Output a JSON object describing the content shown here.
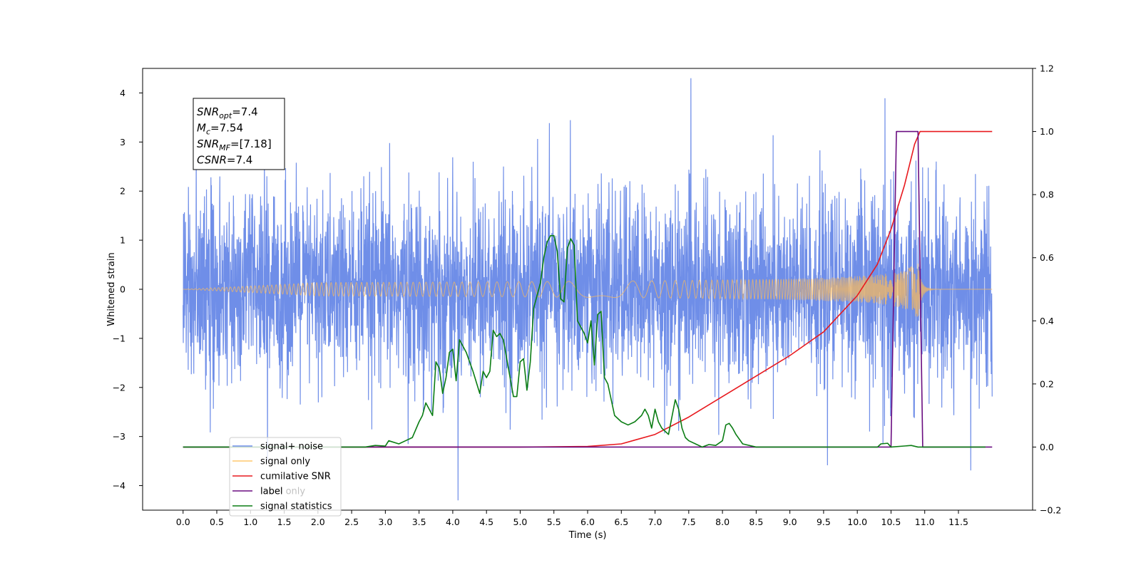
{
  "chart_data": {
    "type": "line",
    "xlabel": "Time (s)",
    "ylabel": "Whitened strain",
    "xlim": [
      -0.6,
      12.6
    ],
    "ylim": [
      -4.5,
      4.5
    ],
    "y2lim": [
      -0.2,
      1.2
    ],
    "x_ticks": [
      "0.0",
      "0.5",
      "1.0",
      "1.5",
      "2.0",
      "2.5",
      "3.0",
      "3.5",
      "4.0",
      "4.5",
      "5.0",
      "5.5",
      "6.0",
      "6.5",
      "7.0",
      "7.5",
      "8.0",
      "8.5",
      "9.0",
      "9.5",
      "10.0",
      "10.5",
      "11.0",
      "11.5"
    ],
    "y_ticks": [
      "4",
      "3",
      "2",
      "1",
      "0",
      "−1",
      "−2",
      "−3",
      "−4"
    ],
    "y2_ticks": [
      "1.2",
      "1.0",
      "0.8",
      "0.6",
      "0.4",
      "0.2",
      "0.0",
      "−0.2"
    ],
    "legend_position": "lower-left",
    "info_box": [
      {
        "main": "SNR",
        "sub": "opt",
        "value": "=7.4"
      },
      {
        "main": "M",
        "sub": "c",
        "value": "=7.54"
      },
      {
        "main": "SNR",
        "sub": "MF",
        "value": "=[7.18]"
      },
      {
        "main": "CSNR",
        "sub": "",
        "value": "=7.4"
      }
    ],
    "series": [
      {
        "name": "signal+ noise",
        "color": "#6f8ee8",
        "axis": "left",
        "kind": "noise",
        "x_range": [
          0,
          12
        ],
        "band_std": 0.95
      },
      {
        "name": "signal only",
        "color": "#f5b860",
        "axis": "left",
        "kind": "chirp",
        "x_range": [
          0,
          12
        ],
        "merger_time": 10.9,
        "peak_amplitude": 0.65
      },
      {
        "name": "cumilative SNR",
        "color": "#e8191e",
        "axis": "right",
        "x": [
          0,
          5,
          6,
          6.5,
          7,
          7.5,
          8,
          8.5,
          9,
          9.5,
          10,
          10.3,
          10.5,
          10.7,
          10.85,
          10.93,
          12
        ],
        "y": [
          0,
          0,
          0.002,
          0.01,
          0.04,
          0.095,
          0.16,
          0.225,
          0.29,
          0.365,
          0.48,
          0.58,
          0.69,
          0.83,
          0.96,
          1.0,
          1.0
        ]
      },
      {
        "name": "label",
        "color": "#6a0d80",
        "axis": "right",
        "x": [
          0,
          10.5,
          10.58,
          10.9,
          10.97,
          12
        ],
        "y": [
          0,
          0,
          1.0,
          1.0,
          0,
          0
        ]
      },
      {
        "name": "signal statistics",
        "color": "#0b7d14",
        "axis": "right",
        "x": [
          0,
          2.7,
          2.85,
          3.0,
          3.05,
          3.2,
          3.3,
          3.4,
          3.5,
          3.55,
          3.6,
          3.65,
          3.7,
          3.75,
          3.8,
          3.85,
          3.9,
          3.95,
          4.0,
          4.05,
          4.1,
          4.2,
          4.3,
          4.4,
          4.45,
          4.5,
          4.55,
          4.6,
          4.65,
          4.7,
          4.75,
          4.8,
          4.85,
          4.9,
          4.95,
          5.0,
          5.05,
          5.1,
          5.15,
          5.2,
          5.25,
          5.3,
          5.35,
          5.4,
          5.45,
          5.5,
          5.55,
          5.6,
          5.65,
          5.7,
          5.75,
          5.8,
          5.85,
          5.9,
          5.95,
          6.0,
          6.05,
          6.1,
          6.15,
          6.2,
          6.25,
          6.3,
          6.4,
          6.5,
          6.6,
          6.7,
          6.75,
          6.8,
          6.85,
          6.9,
          6.95,
          7.0,
          7.05,
          7.1,
          7.15,
          7.2,
          7.3,
          7.35,
          7.4,
          7.45,
          7.5,
          7.6,
          7.7,
          7.8,
          7.9,
          8.0,
          8.05,
          8.1,
          8.15,
          8.2,
          8.3,
          8.5,
          10.3,
          10.35,
          10.45,
          10.5,
          10.8,
          10.9,
          11.0,
          11.9
        ],
        "y": [
          0,
          0,
          0.005,
          0.003,
          0.02,
          0.01,
          0.02,
          0.03,
          0.08,
          0.1,
          0.14,
          0.12,
          0.1,
          0.27,
          0.25,
          0.17,
          0.22,
          0.3,
          0.31,
          0.21,
          0.34,
          0.3,
          0.24,
          0.17,
          0.24,
          0.22,
          0.24,
          0.37,
          0.35,
          0.36,
          0.34,
          0.28,
          0.22,
          0.16,
          0.16,
          0.27,
          0.28,
          0.18,
          0.27,
          0.44,
          0.48,
          0.52,
          0.6,
          0.65,
          0.67,
          0.67,
          0.62,
          0.47,
          0.46,
          0.63,
          0.66,
          0.64,
          0.4,
          0.38,
          0.36,
          0.33,
          0.4,
          0.26,
          0.42,
          0.43,
          0.22,
          0.2,
          0.1,
          0.08,
          0.07,
          0.08,
          0.09,
          0.1,
          0.12,
          0.1,
          0.06,
          0.12,
          0.08,
          0.06,
          0.05,
          0.04,
          0.15,
          0.12,
          0.06,
          0.03,
          0.02,
          0.01,
          0.0,
          0.008,
          0.005,
          0.02,
          0.07,
          0.075,
          0.06,
          0.04,
          0.01,
          0.0,
          0.0,
          0.01,
          0.012,
          0.0,
          0.005,
          0.0,
          0.0,
          0.0
        ]
      }
    ],
    "overlay_legend_entries": [
      "label only"
    ]
  }
}
